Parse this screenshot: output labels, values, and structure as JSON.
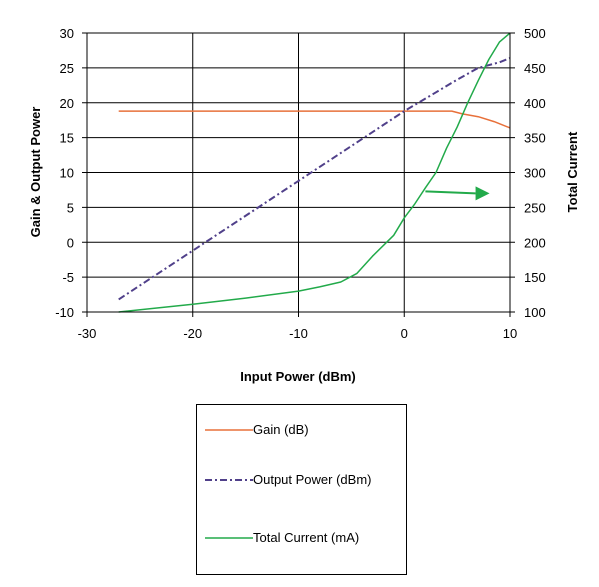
{
  "chart_data": {
    "type": "line",
    "xlabel": "Input Power (dBm)",
    "ylabel": "Gain & Output Power",
    "y2label": "Total Current",
    "xlim": [
      -30,
      10
    ],
    "ylim": [
      -10,
      30
    ],
    "y2lim": [
      100,
      500
    ],
    "x_ticks": [
      "-30",
      "-20",
      "-10",
      "0",
      "10"
    ],
    "y_ticks": [
      "-10",
      "-5",
      "0",
      "5",
      "10",
      "15",
      "20",
      "25",
      "30"
    ],
    "y2_ticks": [
      "100",
      "150",
      "200",
      "250",
      "300",
      "350",
      "400",
      "450",
      "500"
    ],
    "grid": "major gridlines on",
    "legend_position": "below plot",
    "series": [
      {
        "name": "Gain (dB)",
        "axis": "left",
        "color": "#e8703a",
        "style": "solid",
        "points": [
          [
            -27,
            18.8
          ],
          [
            -20,
            18.8
          ],
          [
            -10,
            18.8
          ],
          [
            0,
            18.8
          ],
          [
            4.5,
            18.8
          ],
          [
            5.5,
            18.4
          ],
          [
            7,
            18.0
          ],
          [
            8.5,
            17.3
          ],
          [
            10,
            16.4
          ]
        ]
      },
      {
        "name": "Output Power (dBm)",
        "axis": "left",
        "color": "#50408a",
        "style": "dash-dot",
        "points": [
          [
            -27,
            -8.2
          ],
          [
            -20,
            -1.2
          ],
          [
            -10,
            8.8
          ],
          [
            -5,
            13.8
          ],
          [
            0,
            18.8
          ],
          [
            3,
            21.5
          ],
          [
            5,
            23.3
          ],
          [
            7,
            25.0
          ],
          [
            9,
            25.8
          ],
          [
            10,
            26.4
          ]
        ]
      },
      {
        "name": "Total Current (mA)",
        "axis": "right",
        "color": "#22aa4a",
        "style": "solid",
        "points": [
          [
            -27,
            100
          ],
          [
            -20,
            111
          ],
          [
            -15,
            120
          ],
          [
            -10,
            130
          ],
          [
            -8,
            136
          ],
          [
            -6,
            143
          ],
          [
            -4.5,
            155
          ],
          [
            -3,
            180
          ],
          [
            -1,
            210
          ],
          [
            0,
            235
          ],
          [
            1,
            255
          ],
          [
            2,
            278
          ],
          [
            3,
            300
          ],
          [
            4,
            335
          ],
          [
            5,
            365
          ],
          [
            6,
            400
          ],
          [
            7,
            432
          ],
          [
            8,
            462
          ],
          [
            9,
            487
          ],
          [
            10,
            500
          ]
        ]
      }
    ],
    "annotation": {
      "type": "arrow",
      "from": [
        2,
        273
      ],
      "to": [
        7.5,
        270
      ],
      "axis": "right",
      "color": "#22aa4a"
    }
  }
}
